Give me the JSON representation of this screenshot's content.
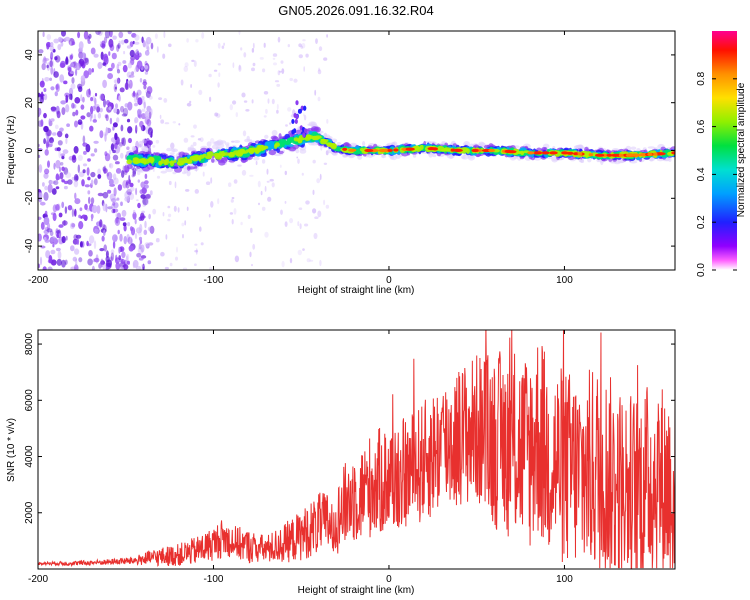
{
  "title": "GN05.2026.091.16.32.R04",
  "colors": {
    "snr_line": "#e8302e",
    "low_scatter": "#8a3cf0",
    "colormap": [
      "#ffffff",
      "#ff00ff",
      "#7a00ff",
      "#2020ff",
      "#00a0ff",
      "#00e0e0",
      "#00e060",
      "#a0f000",
      "#ffe000",
      "#ff8000",
      "#ff0000",
      "#ff0080"
    ]
  },
  "chart_data": [
    {
      "type": "heatmap",
      "name": "spectrogram",
      "xlabel": "Height of straight line (km)",
      "ylabel": "Frequency (Hz)",
      "xlim": [
        -200,
        163
      ],
      "ylim": [
        -50,
        50
      ],
      "xticks": [
        -200,
        -100,
        0,
        100
      ],
      "yticks": [
        -40,
        -20,
        0,
        20,
        40
      ],
      "ridge": [
        {
          "x": -145,
          "y": -4
        },
        {
          "x": -120,
          "y": -5
        },
        {
          "x": -100,
          "y": -2
        },
        {
          "x": -85,
          "y": -1
        },
        {
          "x": -70,
          "y": 1
        },
        {
          "x": -55,
          "y": 4
        },
        {
          "x": -42,
          "y": 6
        },
        {
          "x": -30,
          "y": 1
        },
        {
          "x": -20,
          "y": 0
        },
        {
          "x": 0,
          "y": 0
        },
        {
          "x": 20,
          "y": 1
        },
        {
          "x": 40,
          "y": 0
        },
        {
          "x": 60,
          "y": 0
        },
        {
          "x": 80,
          "y": -1
        },
        {
          "x": 100,
          "y": -1
        },
        {
          "x": 120,
          "y": -2
        },
        {
          "x": 140,
          "y": -2
        },
        {
          "x": 163,
          "y": -1
        }
      ],
      "noise_region": [
        -200,
        -145
      ],
      "colorbar": {
        "label": "Normalized spectral amplitude",
        "range": [
          0,
          1
        ],
        "ticks": [
          "0.0",
          "0.2",
          "0.4",
          "0.6",
          "0.8"
        ]
      }
    },
    {
      "type": "line",
      "name": "snr",
      "xlabel": "Height of straight line (km)",
      "ylabel": "SNR (10 * v/v)",
      "xlim": [
        -200,
        163
      ],
      "ylim": [
        0,
        8500
      ],
      "xticks": [
        -200,
        -100,
        0,
        100
      ],
      "yticks": [
        2000,
        4000,
        6000,
        8000
      ],
      "series": [
        {
          "name": "SNR",
          "x": [
            -200,
            -180,
            -160,
            -145,
            -135,
            -120,
            -110,
            -100,
            -95,
            -90,
            -80,
            -70,
            -60,
            -50,
            -40,
            -30,
            -25,
            -20,
            -15,
            -10,
            0,
            10,
            20,
            30,
            40,
            50,
            60,
            70,
            80,
            85,
            90,
            100,
            110,
            120,
            130,
            140,
            150,
            160,
            163
          ],
          "y": [
            200,
            200,
            250,
            300,
            400,
            500,
            650,
            900,
            1100,
            1000,
            800,
            700,
            900,
            1200,
            1600,
            1700,
            2300,
            2600,
            2700,
            3000,
            3200,
            3400,
            3800,
            4400,
            4700,
            5000,
            4600,
            4400,
            4200,
            4800,
            4000,
            3600,
            3400,
            3600,
            3000,
            2800,
            3200,
            3000,
            2800
          ],
          "spread": [
            50,
            80,
            100,
            150,
            300,
            400,
            500,
            600,
            700,
            600,
            600,
            500,
            700,
            900,
            1100,
            1200,
            1500,
            1700,
            1700,
            1900,
            2000,
            2000,
            2200,
            2400,
            2600,
            2700,
            3200,
            3400,
            3600,
            3800,
            3600,
            3600,
            3600,
            3800,
            3600,
            3500,
            3600,
            3600,
            3500
          ]
        }
      ]
    }
  ]
}
